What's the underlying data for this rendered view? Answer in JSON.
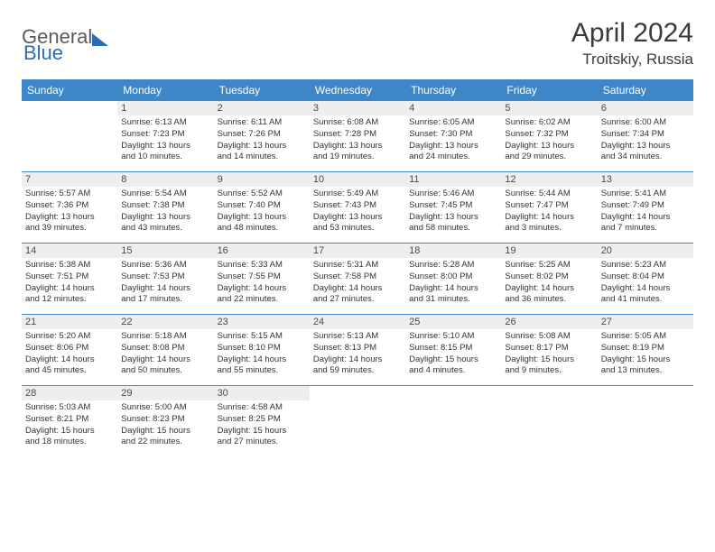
{
  "logo": {
    "part1": "General",
    "part2": "Blue"
  },
  "title": "April 2024",
  "location": "Troitskiy, Russia",
  "colors": {
    "header_bg": "#3d87c7",
    "header_text": "#ffffff",
    "row_border": "#3d87c7",
    "daynum_bg": "#eceeef",
    "logo_gray": "#5a5a5a",
    "logo_blue": "#2a6db5"
  },
  "day_headers": [
    "Sunday",
    "Monday",
    "Tuesday",
    "Wednesday",
    "Thursday",
    "Friday",
    "Saturday"
  ],
  "weeks": [
    [
      {
        "day": "",
        "lines": []
      },
      {
        "day": "1",
        "lines": [
          "Sunrise: 6:13 AM",
          "Sunset: 7:23 PM",
          "Daylight: 13 hours",
          "and 10 minutes."
        ]
      },
      {
        "day": "2",
        "lines": [
          "Sunrise: 6:11 AM",
          "Sunset: 7:26 PM",
          "Daylight: 13 hours",
          "and 14 minutes."
        ]
      },
      {
        "day": "3",
        "lines": [
          "Sunrise: 6:08 AM",
          "Sunset: 7:28 PM",
          "Daylight: 13 hours",
          "and 19 minutes."
        ]
      },
      {
        "day": "4",
        "lines": [
          "Sunrise: 6:05 AM",
          "Sunset: 7:30 PM",
          "Daylight: 13 hours",
          "and 24 minutes."
        ]
      },
      {
        "day": "5",
        "lines": [
          "Sunrise: 6:02 AM",
          "Sunset: 7:32 PM",
          "Daylight: 13 hours",
          "and 29 minutes."
        ]
      },
      {
        "day": "6",
        "lines": [
          "Sunrise: 6:00 AM",
          "Sunset: 7:34 PM",
          "Daylight: 13 hours",
          "and 34 minutes."
        ]
      }
    ],
    [
      {
        "day": "7",
        "lines": [
          "Sunrise: 5:57 AM",
          "Sunset: 7:36 PM",
          "Daylight: 13 hours",
          "and 39 minutes."
        ]
      },
      {
        "day": "8",
        "lines": [
          "Sunrise: 5:54 AM",
          "Sunset: 7:38 PM",
          "Daylight: 13 hours",
          "and 43 minutes."
        ]
      },
      {
        "day": "9",
        "lines": [
          "Sunrise: 5:52 AM",
          "Sunset: 7:40 PM",
          "Daylight: 13 hours",
          "and 48 minutes."
        ]
      },
      {
        "day": "10",
        "lines": [
          "Sunrise: 5:49 AM",
          "Sunset: 7:43 PM",
          "Daylight: 13 hours",
          "and 53 minutes."
        ]
      },
      {
        "day": "11",
        "lines": [
          "Sunrise: 5:46 AM",
          "Sunset: 7:45 PM",
          "Daylight: 13 hours",
          "and 58 minutes."
        ]
      },
      {
        "day": "12",
        "lines": [
          "Sunrise: 5:44 AM",
          "Sunset: 7:47 PM",
          "Daylight: 14 hours",
          "and 3 minutes."
        ]
      },
      {
        "day": "13",
        "lines": [
          "Sunrise: 5:41 AM",
          "Sunset: 7:49 PM",
          "Daylight: 14 hours",
          "and 7 minutes."
        ]
      }
    ],
    [
      {
        "day": "14",
        "lines": [
          "Sunrise: 5:38 AM",
          "Sunset: 7:51 PM",
          "Daylight: 14 hours",
          "and 12 minutes."
        ]
      },
      {
        "day": "15",
        "lines": [
          "Sunrise: 5:36 AM",
          "Sunset: 7:53 PM",
          "Daylight: 14 hours",
          "and 17 minutes."
        ]
      },
      {
        "day": "16",
        "lines": [
          "Sunrise: 5:33 AM",
          "Sunset: 7:55 PM",
          "Daylight: 14 hours",
          "and 22 minutes."
        ]
      },
      {
        "day": "17",
        "lines": [
          "Sunrise: 5:31 AM",
          "Sunset: 7:58 PM",
          "Daylight: 14 hours",
          "and 27 minutes."
        ]
      },
      {
        "day": "18",
        "lines": [
          "Sunrise: 5:28 AM",
          "Sunset: 8:00 PM",
          "Daylight: 14 hours",
          "and 31 minutes."
        ]
      },
      {
        "day": "19",
        "lines": [
          "Sunrise: 5:25 AM",
          "Sunset: 8:02 PM",
          "Daylight: 14 hours",
          "and 36 minutes."
        ]
      },
      {
        "day": "20",
        "lines": [
          "Sunrise: 5:23 AM",
          "Sunset: 8:04 PM",
          "Daylight: 14 hours",
          "and 41 minutes."
        ]
      }
    ],
    [
      {
        "day": "21",
        "lines": [
          "Sunrise: 5:20 AM",
          "Sunset: 8:06 PM",
          "Daylight: 14 hours",
          "and 45 minutes."
        ]
      },
      {
        "day": "22",
        "lines": [
          "Sunrise: 5:18 AM",
          "Sunset: 8:08 PM",
          "Daylight: 14 hours",
          "and 50 minutes."
        ]
      },
      {
        "day": "23",
        "lines": [
          "Sunrise: 5:15 AM",
          "Sunset: 8:10 PM",
          "Daylight: 14 hours",
          "and 55 minutes."
        ]
      },
      {
        "day": "24",
        "lines": [
          "Sunrise: 5:13 AM",
          "Sunset: 8:13 PM",
          "Daylight: 14 hours",
          "and 59 minutes."
        ]
      },
      {
        "day": "25",
        "lines": [
          "Sunrise: 5:10 AM",
          "Sunset: 8:15 PM",
          "Daylight: 15 hours",
          "and 4 minutes."
        ]
      },
      {
        "day": "26",
        "lines": [
          "Sunrise: 5:08 AM",
          "Sunset: 8:17 PM",
          "Daylight: 15 hours",
          "and 9 minutes."
        ]
      },
      {
        "day": "27",
        "lines": [
          "Sunrise: 5:05 AM",
          "Sunset: 8:19 PM",
          "Daylight: 15 hours",
          "and 13 minutes."
        ]
      }
    ],
    [
      {
        "day": "28",
        "lines": [
          "Sunrise: 5:03 AM",
          "Sunset: 8:21 PM",
          "Daylight: 15 hours",
          "and 18 minutes."
        ]
      },
      {
        "day": "29",
        "lines": [
          "Sunrise: 5:00 AM",
          "Sunset: 8:23 PM",
          "Daylight: 15 hours",
          "and 22 minutes."
        ]
      },
      {
        "day": "30",
        "lines": [
          "Sunrise: 4:58 AM",
          "Sunset: 8:25 PM",
          "Daylight: 15 hours",
          "and 27 minutes."
        ]
      },
      {
        "day": "",
        "lines": []
      },
      {
        "day": "",
        "lines": []
      },
      {
        "day": "",
        "lines": []
      },
      {
        "day": "",
        "lines": []
      }
    ]
  ]
}
